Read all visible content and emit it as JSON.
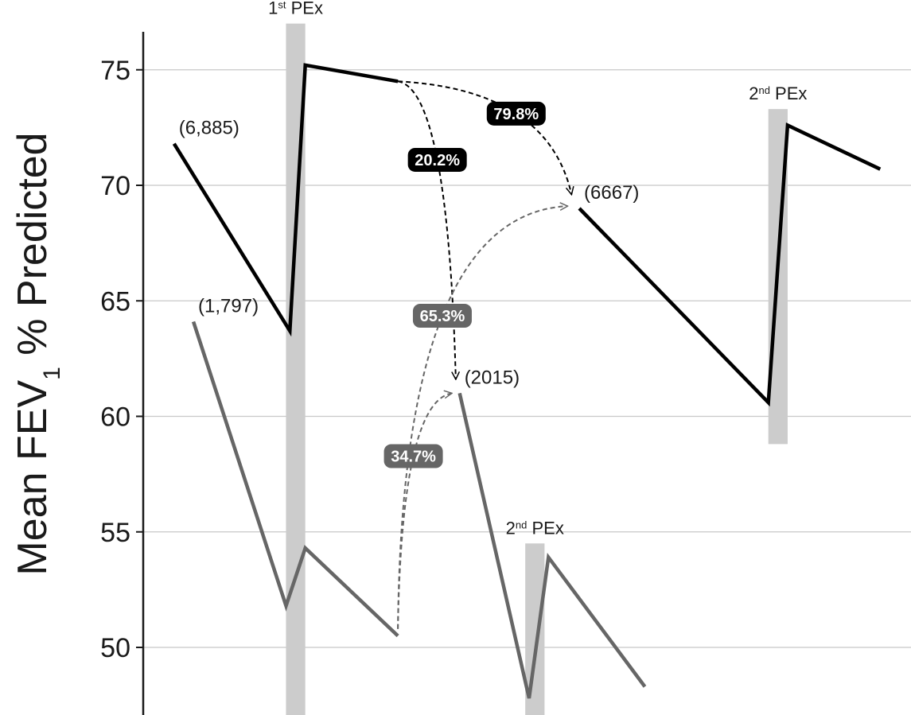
{
  "chart_data": {
    "type": "line",
    "title": "",
    "xlabel": "",
    "ylabel": {
      "main": "Mean FEV",
      "sub": "1",
      "rest": " % Predicted"
    },
    "ylim": [
      47,
      77
    ],
    "yticks": [
      50,
      55,
      60,
      65,
      70,
      75
    ],
    "grid": true,
    "colors": {
      "upper": "#000000",
      "lower": "#666666",
      "pex_band": "#cccccc",
      "grid": "#c8c8c8"
    },
    "pex_labels": [
      {
        "num": "1",
        "sup": "st",
        "text": " PEx"
      },
      {
        "num": "2",
        "sup": "nd",
        "text": " PEx"
      },
      {
        "num": "2",
        "sup": "nd",
        "text": " PEx"
      }
    ],
    "series": [
      {
        "color": "#000000",
        "segments": [
          {
            "label": "(6,885)",
            "points": [
              [
                0.4,
                71.8
              ],
              [
                1.9,
                63.7
              ],
              [
                2.1,
                75.2
              ],
              [
                3.3,
                74.5
              ]
            ]
          },
          {
            "label": "(6667)",
            "points": [
              [
                5.65,
                69.0
              ],
              [
                8.1,
                60.6
              ],
              [
                8.35,
                72.6
              ],
              [
                9.55,
                70.7
              ]
            ]
          }
        ]
      },
      {
        "color": "#666666",
        "segments": [
          {
            "label": "(1,797)",
            "points": [
              [
                0.65,
                64.1
              ],
              [
                1.85,
                51.8
              ],
              [
                2.1,
                54.3
              ],
              [
                3.3,
                50.5
              ]
            ]
          },
          {
            "label": "(2015)",
            "points": [
              [
                4.1,
                61.0
              ],
              [
                5.0,
                47.8
              ],
              [
                5.25,
                53.9
              ],
              [
                6.5,
                48.3
              ]
            ]
          }
        ]
      }
    ],
    "pex_bands": [
      {
        "x": [
          1.85,
          2.1
        ],
        "y": [
          46.5,
          77.0
        ]
      },
      {
        "x": [
          4.95,
          5.2
        ],
        "y": [
          46.5,
          54.5
        ]
      },
      {
        "x": [
          8.1,
          8.35
        ],
        "y": [
          58.8,
          73.3
        ]
      }
    ],
    "transitions": [
      {
        "label": "79.8%",
        "from": [
          3.3,
          74.5
        ],
        "to": [
          5.55,
          69.6
        ],
        "color": "#000000"
      },
      {
        "label": "20.2%",
        "from": [
          3.3,
          74.5
        ],
        "to": [
          4.05,
          61.6
        ],
        "color": "#000000"
      },
      {
        "label": "65.3%",
        "from": [
          3.3,
          50.8
        ],
        "to": [
          5.5,
          69.1
        ],
        "color": "#666666"
      },
      {
        "label": "34.7%",
        "from": [
          3.3,
          50.8
        ],
        "to": [
          4.0,
          61.0
        ],
        "color": "#666666"
      }
    ]
  }
}
